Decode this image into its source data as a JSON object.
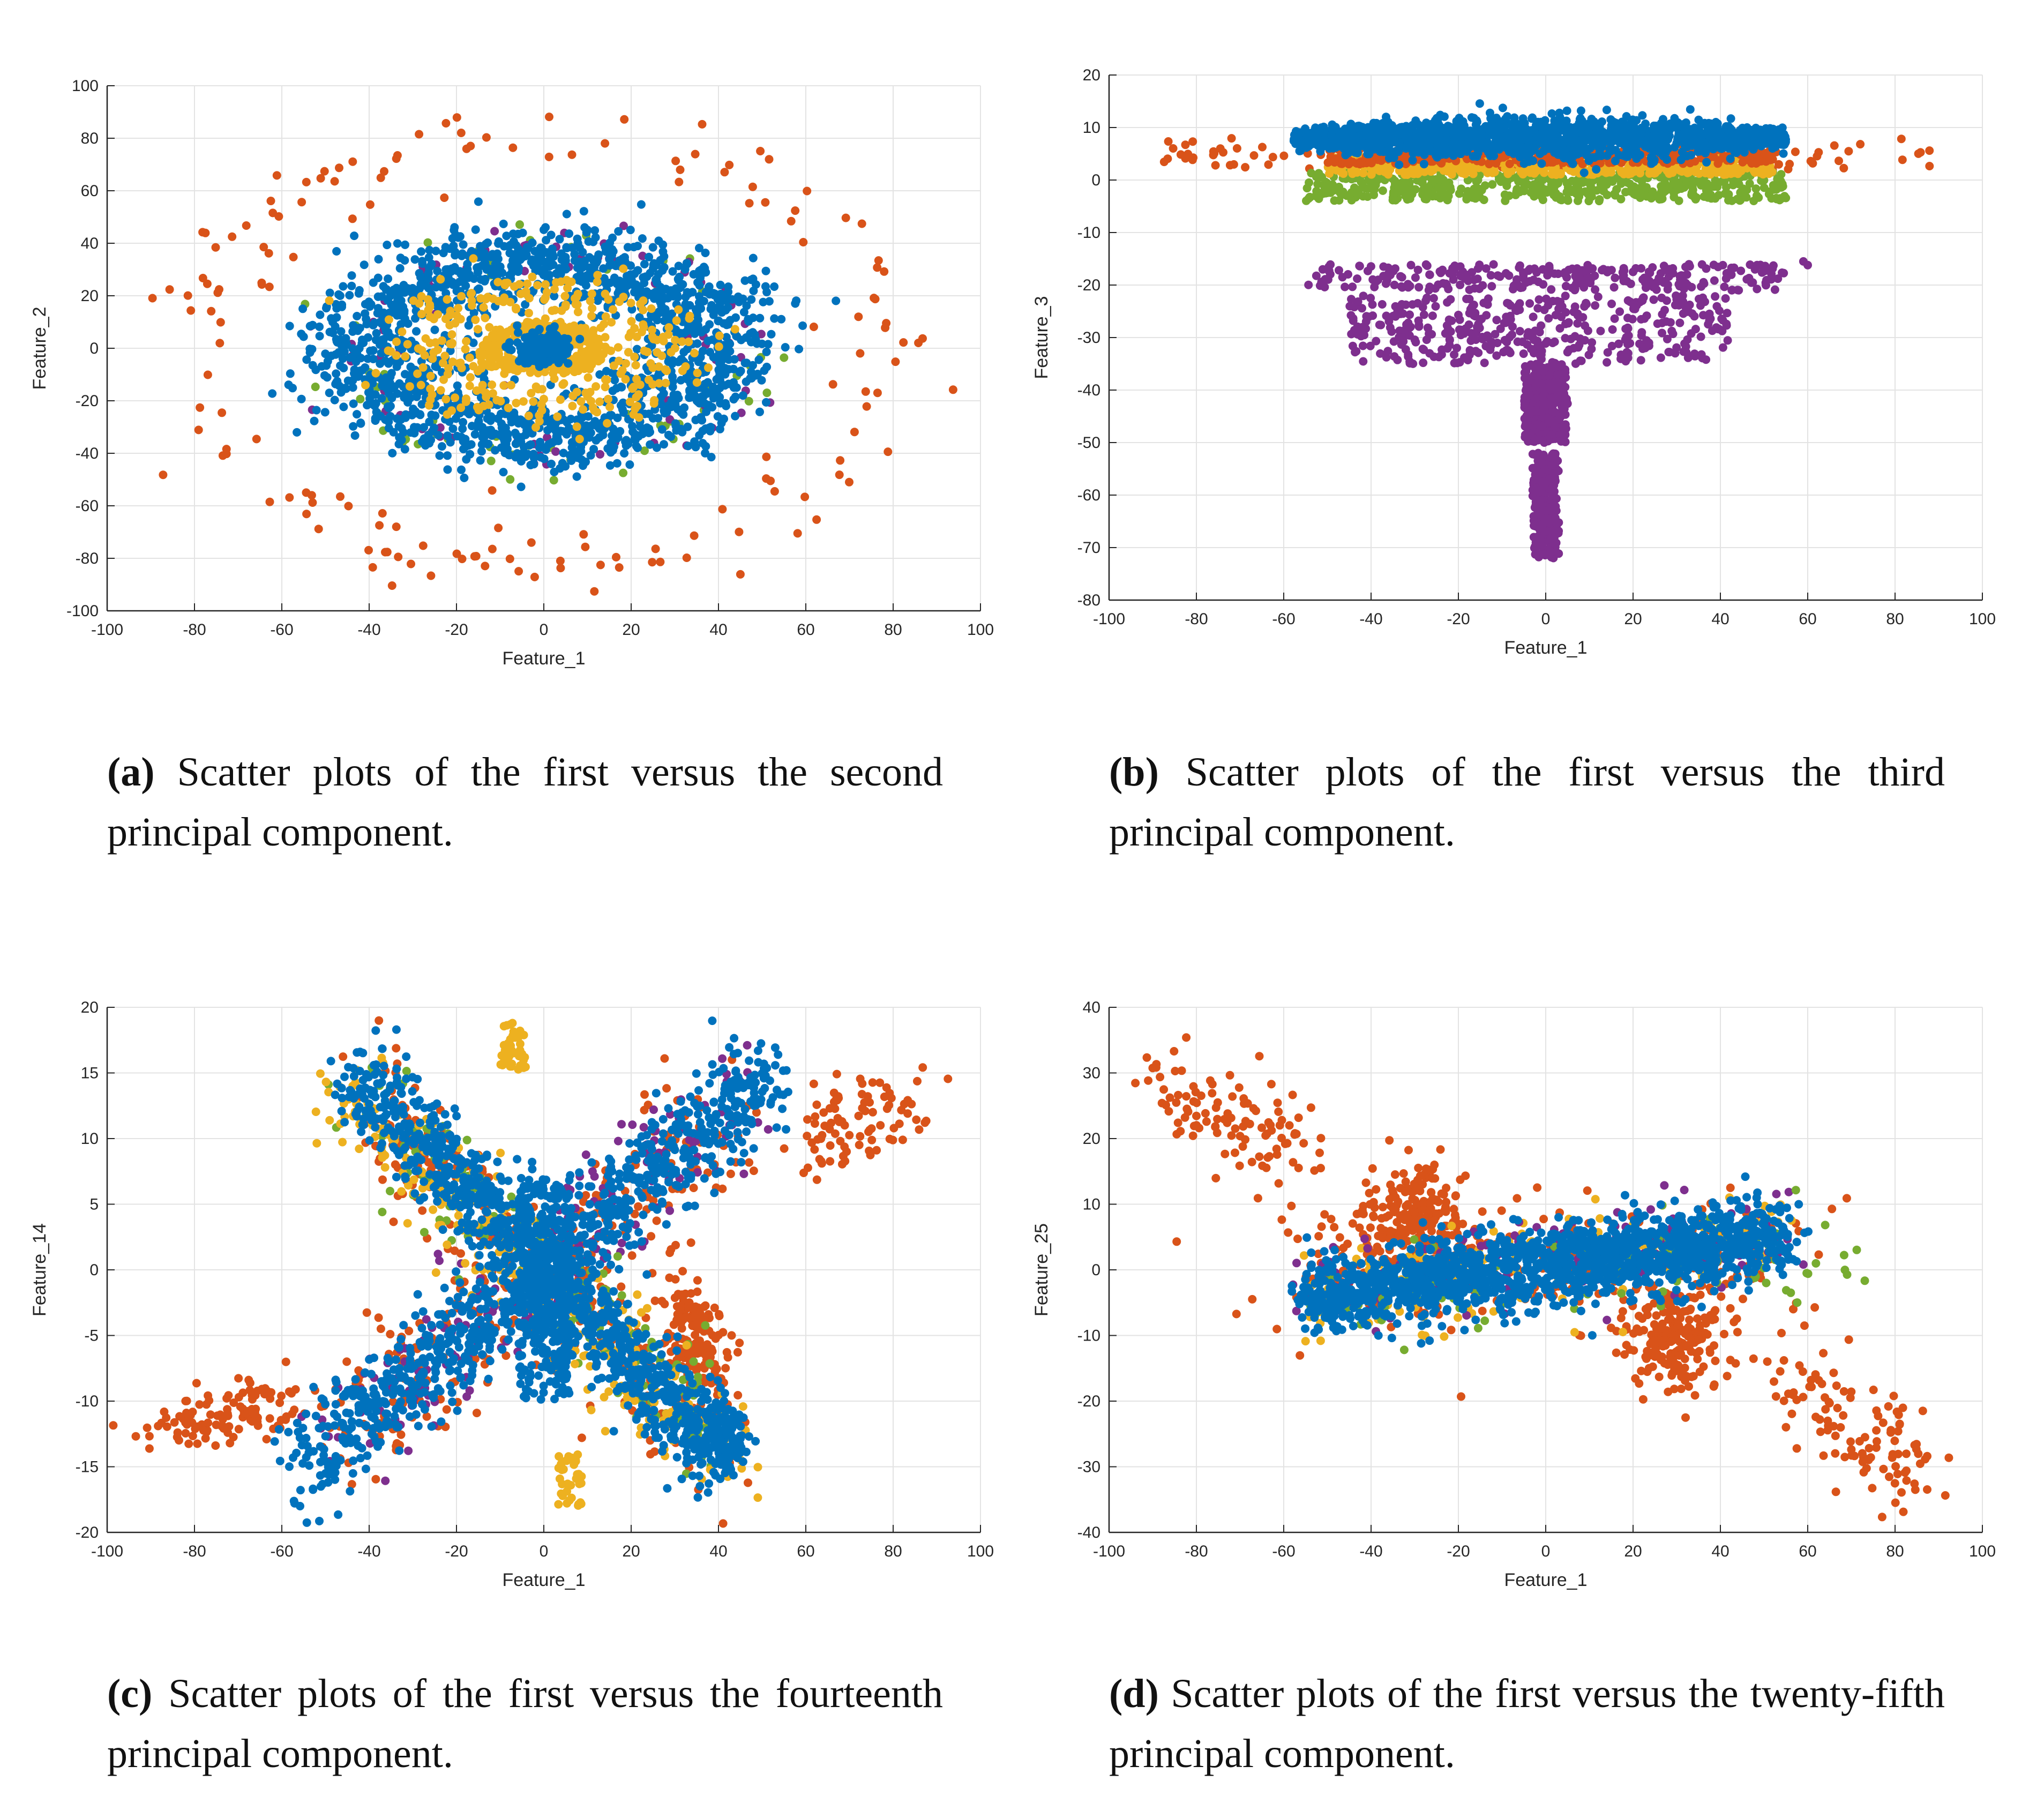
{
  "palette": {
    "blue": "#0072BD",
    "orange": "#D95319",
    "yellow": "#EDB120",
    "purple": "#7E2F8E",
    "green": "#77AC30"
  },
  "chart_data": [
    {
      "id": "a",
      "type": "scatter",
      "xlabel": "Feature_1",
      "ylabel": "Feature_2",
      "xlim": [
        -100,
        100
      ],
      "ylim": [
        -100,
        100
      ],
      "xticks": [
        -100,
        -80,
        -60,
        -40,
        -20,
        0,
        20,
        40,
        60,
        80,
        100
      ],
      "yticks": [
        -100,
        -80,
        -60,
        -40,
        -20,
        0,
        20,
        40,
        60,
        80,
        100
      ],
      "grid": true,
      "caption_tag": "(a)",
      "caption_text": "Scatter plots of the first versus the second principal component.",
      "series_description": "Blue elliptical ring (radius ~40x25) with dense core at origin; yellow ring radius ~12; orange outer ring radius ~80; purple and green scattered near the blue ring"
    },
    {
      "id": "b",
      "type": "scatter",
      "xlabel": "Feature_1",
      "ylabel": "Feature_3",
      "xlim": [
        -100,
        100
      ],
      "ylim": [
        -80,
        20
      ],
      "xticks": [
        -100,
        -80,
        -60,
        -40,
        -20,
        0,
        20,
        40,
        60,
        80,
        100
      ],
      "yticks": [
        -80,
        -70,
        -60,
        -50,
        -40,
        -30,
        -20,
        -10,
        0,
        10,
        20
      ],
      "grid": true,
      "caption_tag": "(b)",
      "caption_text": "Scatter plots of the first versus the third principal component.",
      "series_description": "Blue band at y≈8 for x in [-58,55]; orange band y≈4 spanning x in [-88,88]; yellow y≈2; green y≈-1; purple band y≈-18 to -35 for x in [-55,60] plus a vertical column at x≈0 from y≈-35 to -72"
    },
    {
      "id": "c",
      "type": "scatter",
      "xlabel": "Feature_1",
      "ylabel": "Feature_14",
      "xlim": [
        -100,
        100
      ],
      "ylim": [
        -20,
        20
      ],
      "xticks": [
        -100,
        -80,
        -60,
        -40,
        -20,
        0,
        20,
        40,
        60,
        80,
        100
      ],
      "yticks": [
        -20,
        -15,
        -10,
        -5,
        0,
        5,
        10,
        15,
        20
      ],
      "grid": true,
      "caption_tag": "(c)",
      "caption_text": "Scatter plots of the first versus the fourteenth principal component.",
      "series_description": "Blue X-shaped pattern with diagonals from (-40,15) to (40,-14) and (-50,-15) to (50,15) plus a vertical bar at x≈0; orange clusters along arms and outer tails at x≈±80; yellow, purple and green mixed"
    },
    {
      "id": "d",
      "type": "scatter",
      "xlabel": "Feature_1",
      "ylabel": "Feature_25",
      "xlim": [
        -100,
        100
      ],
      "ylim": [
        -40,
        40
      ],
      "xticks": [
        -100,
        -80,
        -60,
        -40,
        -20,
        0,
        20,
        40,
        60,
        80,
        100
      ],
      "yticks": [
        -40,
        -30,
        -20,
        -10,
        0,
        10,
        20,
        30,
        40
      ],
      "grid": true,
      "caption_tag": "(d)",
      "caption_text": "Scatter plots of the first versus the twenty-fifth principal component.",
      "series_description": "Blue elongated band rising from (-55,-3) to (55,5); orange diagonal tail from (-85,30) down to (85,-35) with clusters at (-30,8) and (30,-10); yellow, purple, green overlapping the blue band"
    }
  ]
}
